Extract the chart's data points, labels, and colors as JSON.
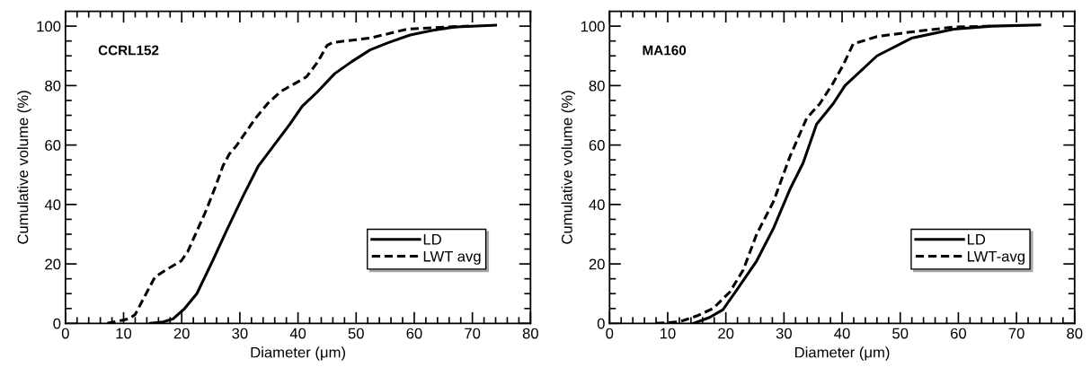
{
  "chart_data": [
    {
      "type": "line",
      "xlabel": "Diameter (μm)",
      "ylabel": "Cumulative volume (%)",
      "annotations": [
        "CCRL152"
      ],
      "xlim": [
        0,
        80
      ],
      "ylim": [
        0,
        105
      ],
      "xticks": [
        0,
        {
          "value": 2,
          "label": null
        },
        {
          "value": 4,
          "label": null
        },
        {
          "value": 6,
          "label": null
        },
        {
          "value": 8,
          "label": null
        },
        10,
        {
          "value": 12,
          "label": null
        },
        {
          "value": 14,
          "label": null
        },
        {
          "value": 16,
          "label": null
        },
        {
          "value": 18,
          "label": null
        },
        20,
        {
          "value": 22,
          "label": null
        },
        {
          "value": 24,
          "label": null
        },
        {
          "value": 26,
          "label": null
        },
        {
          "value": 28,
          "label": null
        },
        30,
        {
          "value": 32,
          "label": null
        },
        {
          "value": 34,
          "label": null
        },
        {
          "value": 36,
          "label": null
        },
        {
          "value": 38,
          "label": null
        },
        40,
        {
          "value": 42,
          "label": null
        },
        {
          "value": 44,
          "label": null
        },
        {
          "value": 46,
          "label": null
        },
        {
          "value": 48,
          "label": null
        },
        50,
        {
          "value": 52,
          "label": null
        },
        {
          "value": 54,
          "label": null
        },
        {
          "value": 56,
          "label": null
        },
        {
          "value": 58,
          "label": null
        },
        60,
        {
          "value": 62,
          "label": null
        },
        {
          "value": 64,
          "label": null
        },
        {
          "value": 66,
          "label": null
        },
        {
          "value": 68,
          "label": null
        },
        70,
        {
          "value": 72,
          "label": null
        },
        {
          "value": 74,
          "label": null
        },
        {
          "value": 76,
          "label": null
        },
        {
          "value": 78,
          "label": null
        },
        80
      ],
      "yticks": [
        0,
        {
          "value": 5,
          "label": null
        },
        {
          "value": 10,
          "label": null
        },
        {
          "value": 15,
          "label": null
        },
        20,
        {
          "value": 25,
          "label": null
        },
        {
          "value": 30,
          "label": null
        },
        {
          "value": 35,
          "label": null
        },
        40,
        {
          "value": 45,
          "label": null
        },
        {
          "value": 50,
          "label": null
        },
        {
          "value": 55,
          "label": null
        },
        60,
        {
          "value": 65,
          "label": null
        },
        {
          "value": 70,
          "label": null
        },
        {
          "value": 75,
          "label": null
        },
        80,
        {
          "value": 85,
          "label": null
        },
        {
          "value": 90,
          "label": null
        },
        {
          "value": 95,
          "label": null
        },
        100
      ],
      "grid": false,
      "legend": "lower right",
      "marker": "none",
      "series": [
        {
          "name": "LD",
          "color": "#000000",
          "line_style": "solid",
          "x": [
            14.6,
            16.8,
            18.5,
            20.5,
            22.6,
            25.3,
            27.9,
            30.6,
            33.2,
            35.9,
            38.6,
            40.7,
            43.4,
            46.3,
            49.2,
            52.4,
            55.6,
            59.3,
            63,
            66.8,
            74
          ],
          "values": [
            0,
            0.5,
            1.5,
            5,
            10,
            21,
            32,
            43,
            53,
            60,
            67,
            73,
            78,
            84,
            88,
            92,
            94.5,
            97,
            98.5,
            99.7,
            100.3
          ]
        },
        {
          "name": "LWT avg",
          "color": "#000000",
          "line_style": "dashed",
          "x": [
            7.2,
            10.9,
            12,
            13.6,
            15.4,
            17.3,
            19.9,
            21,
            22.6,
            24.2,
            25.8,
            27.1,
            28.2,
            29.5,
            30.9,
            32.7,
            34.8,
            37,
            40.2,
            41.5,
            43.4,
            45,
            46,
            52.4,
            58.8,
            65.2,
            69.4
          ],
          "values": [
            0,
            1.5,
            3,
            9,
            15.6,
            18,
            21,
            24,
            31,
            38,
            46,
            53,
            57,
            60,
            64,
            69,
            74,
            78,
            81.5,
            83,
            88,
            93.5,
            94.5,
            96,
            99,
            99.7,
            100
          ]
        }
      ]
    },
    {
      "type": "line",
      "xlabel": "Diameter (μm)",
      "ylabel": "Cumulative volume (%)",
      "annotations": [
        "MA160"
      ],
      "xlim": [
        0,
        80
      ],
      "ylim": [
        0,
        105
      ],
      "xticks": [
        0,
        {
          "value": 2,
          "label": null
        },
        {
          "value": 4,
          "label": null
        },
        {
          "value": 6,
          "label": null
        },
        {
          "value": 8,
          "label": null
        },
        10,
        {
          "value": 12,
          "label": null
        },
        {
          "value": 14,
          "label": null
        },
        {
          "value": 16,
          "label": null
        },
        {
          "value": 18,
          "label": null
        },
        20,
        {
          "value": 22,
          "label": null
        },
        {
          "value": 24,
          "label": null
        },
        {
          "value": 26,
          "label": null
        },
        {
          "value": 28,
          "label": null
        },
        30,
        {
          "value": 32,
          "label": null
        },
        {
          "value": 34,
          "label": null
        },
        {
          "value": 36,
          "label": null
        },
        {
          "value": 38,
          "label": null
        },
        40,
        {
          "value": 42,
          "label": null
        },
        {
          "value": 44,
          "label": null
        },
        {
          "value": 46,
          "label": null
        },
        {
          "value": 48,
          "label": null
        },
        50,
        {
          "value": 52,
          "label": null
        },
        {
          "value": 54,
          "label": null
        },
        {
          "value": 56,
          "label": null
        },
        {
          "value": 58,
          "label": null
        },
        60,
        {
          "value": 62,
          "label": null
        },
        {
          "value": 64,
          "label": null
        },
        {
          "value": 66,
          "label": null
        },
        {
          "value": 68,
          "label": null
        },
        70,
        {
          "value": 72,
          "label": null
        },
        {
          "value": 74,
          "label": null
        },
        {
          "value": 76,
          "label": null
        },
        {
          "value": 78,
          "label": null
        },
        80
      ],
      "yticks": [
        0,
        {
          "value": 5,
          "label": null
        },
        {
          "value": 10,
          "label": null
        },
        {
          "value": 15,
          "label": null
        },
        20,
        {
          "value": 25,
          "label": null
        },
        {
          "value": 30,
          "label": null
        },
        {
          "value": 35,
          "label": null
        },
        40,
        {
          "value": 45,
          "label": null
        },
        {
          "value": 50,
          "label": null
        },
        {
          "value": 55,
          "label": null
        },
        60,
        {
          "value": 65,
          "label": null
        },
        {
          "value": 70,
          "label": null
        },
        {
          "value": 75,
          "label": null
        },
        80,
        {
          "value": 85,
          "label": null
        },
        {
          "value": 90,
          "label": null
        },
        {
          "value": 95,
          "label": null
        },
        100
      ],
      "grid": false,
      "legend": "lower right",
      "marker": "none",
      "series": [
        {
          "name": "LD",
          "color": "#000000",
          "line_style": "solid",
          "x": [
            14.4,
            17.2,
            19.5,
            21.8,
            25.3,
            28.2,
            31,
            33.3,
            35.6,
            38.5,
            40.5,
            46,
            52,
            59.2,
            65.7,
            74
          ],
          "values": [
            0,
            2,
            4.6,
            11,
            21,
            32,
            45,
            54,
            67,
            74,
            80,
            90,
            96,
            99,
            100,
            100.4
          ]
        },
        {
          "name": "LWT-avg",
          "color": "#000000",
          "line_style": "dashed",
          "x": [
            8,
            12,
            15,
            17.8,
            20.7,
            23,
            25.3,
            28.2,
            31,
            33.9,
            36.2,
            38.5,
            40.2,
            41.9,
            46,
            51.7,
            59.2,
            65.7
          ],
          "values": [
            0,
            0.5,
            2.5,
            5,
            10.6,
            18,
            30,
            41,
            56,
            69,
            74,
            81,
            87,
            94,
            96.5,
            98,
            99.7,
            100
          ]
        }
      ]
    }
  ]
}
